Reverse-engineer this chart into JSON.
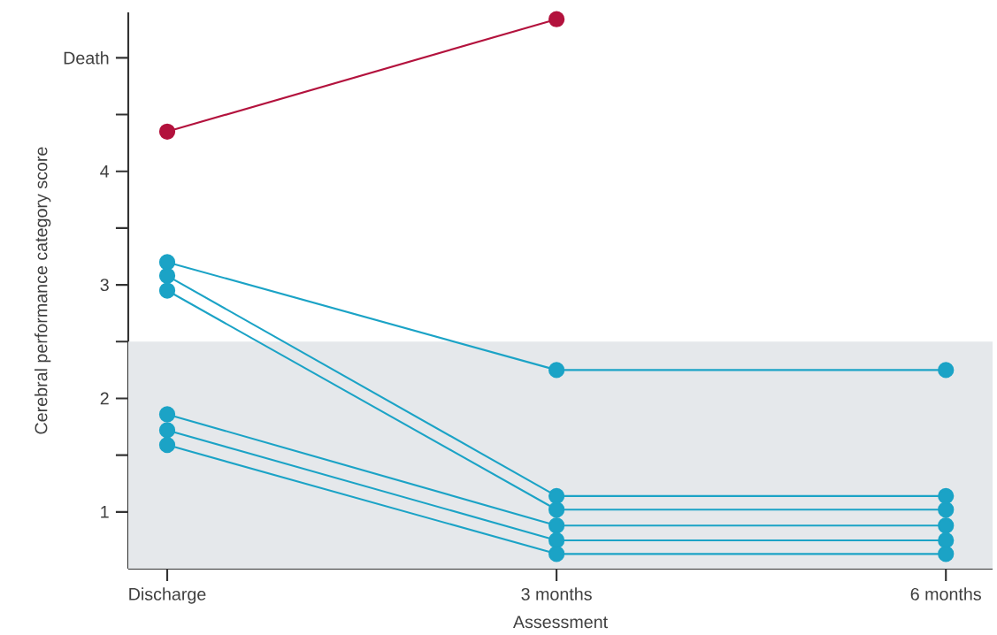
{
  "chart_data": {
    "type": "line",
    "xlabel": "Assessment",
    "ylabel": "Cerebral performance category score",
    "categories": [
      "Discharge",
      "3 months",
      "6 months"
    ],
    "series": [
      {
        "color": "#b3123d",
        "values": [
          4.35,
          5.34,
          null
        ]
      },
      {
        "color": "#1ba3c6",
        "values": [
          3.2,
          2.25,
          2.25
        ]
      },
      {
        "color": "#1ba3c6",
        "values": [
          3.08,
          1.14,
          1.14
        ]
      },
      {
        "color": "#1ba3c6",
        "values": [
          2.95,
          1.02,
          1.02
        ]
      },
      {
        "color": "#1ba3c6",
        "values": [
          1.86,
          0.88,
          0.88
        ]
      },
      {
        "color": "#1ba3c6",
        "values": [
          1.72,
          0.75,
          0.75
        ]
      },
      {
        "color": "#1ba3c6",
        "values": [
          1.59,
          0.63,
          0.63
        ]
      }
    ],
    "ylim": [
      0.5,
      5.4
    ],
    "yticks": [
      1,
      {
        "value": 1.5,
        "label": null
      },
      2,
      {
        "value": 2.5,
        "label": null
      },
      3,
      {
        "value": 3.5,
        "label": null
      },
      4,
      {
        "value": 4.5,
        "label": null
      },
      {
        "value": 5,
        "label": "Death"
      }
    ],
    "bands": [
      {
        "axis": "y",
        "from": 0.5,
        "to": 2.5,
        "color": "#e5e8eb"
      }
    ],
    "marker": "circle",
    "line_style": "solid"
  }
}
